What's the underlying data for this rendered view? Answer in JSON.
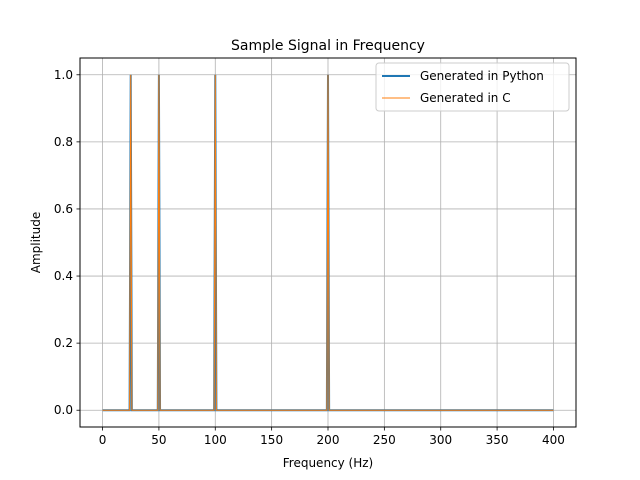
{
  "chart_data": {
    "type": "line",
    "title": "Sample Signal in Frequency",
    "xlabel": "Frequency (Hz)",
    "ylabel": "Amplitude",
    "xlim": [
      -20,
      420
    ],
    "ylim": [
      -0.05,
      1.05
    ],
    "xticks": [
      0,
      50,
      100,
      150,
      200,
      250,
      300,
      350,
      400
    ],
    "yticks": [
      0.0,
      0.2,
      0.4,
      0.6,
      0.8,
      1.0
    ],
    "ytick_labels": [
      "0.0",
      "0.2",
      "0.4",
      "0.6",
      "0.8",
      "1.0"
    ],
    "grid": true,
    "legend_position": "upper right",
    "series": [
      {
        "name": "Generated in Python",
        "color": "#1f77b4",
        "style": "thick",
        "x": [
          0,
          24,
          25,
          26,
          49,
          50,
          51,
          99,
          100,
          101,
          199,
          200,
          201,
          400
        ],
        "y": [
          0,
          0,
          1,
          0,
          0,
          1,
          0,
          0,
          1,
          0,
          0,
          1,
          0,
          0
        ]
      },
      {
        "name": "Generated in C",
        "color": "#ff7f0e",
        "style": "thin",
        "x": [
          0,
          24,
          25,
          26,
          49,
          50,
          51,
          99,
          100,
          101,
          199,
          200,
          201,
          400
        ],
        "y": [
          0,
          0,
          1,
          0,
          0,
          1,
          0,
          0,
          1,
          0,
          0,
          1,
          0,
          0
        ]
      }
    ]
  }
}
